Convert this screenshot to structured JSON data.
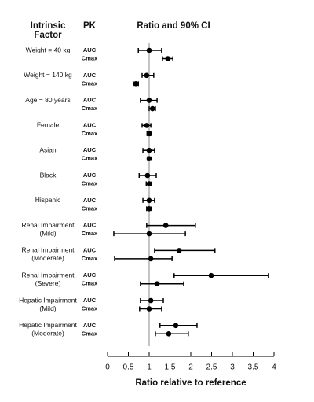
{
  "chart_data": {
    "type": "forest",
    "title": "Ratio and 90% CI",
    "factor_header": [
      "Intrinsic",
      "Factor"
    ],
    "pk_header": "PK",
    "x_label": "Ratio relative to reference",
    "categories": [
      [
        "Weight = 40 kg"
      ],
      [
        "Weight = 140 kg"
      ],
      [
        "Age = 80 years"
      ],
      [
        "Female"
      ],
      [
        "Asian"
      ],
      [
        "Black"
      ],
      [
        "Hispanic"
      ],
      [
        "Renal Impairment",
        "(Mild)"
      ],
      [
        "Renal Impairment",
        "(Moderate)"
      ],
      [
        "Renal Impairment",
        "(Severe)"
      ],
      [
        "Hepatic Impairment",
        "(Mild)"
      ],
      [
        "Hepatic Impairment",
        "(Moderate)"
      ]
    ],
    "series": [
      {
        "name": "AUC",
        "color": "#000000",
        "values": [
          1.0,
          0.94,
          1.0,
          0.94,
          1.0,
          0.96,
          1.0,
          1.4,
          1.72,
          2.49,
          1.04,
          1.64
        ],
        "lower": [
          0.74,
          0.83,
          0.79,
          0.83,
          0.85,
          0.76,
          0.85,
          0.94,
          1.13,
          1.6,
          0.79,
          1.26
        ],
        "upper": [
          1.3,
          1.11,
          1.19,
          1.04,
          1.13,
          1.17,
          1.13,
          2.11,
          2.58,
          3.87,
          1.34,
          2.15
        ]
      },
      {
        "name": "Cmax",
        "color": "#000000",
        "values": [
          1.45,
          0.68,
          1.08,
          1.0,
          1.0,
          1.0,
          1.0,
          1.0,
          1.04,
          1.19,
          1.0,
          1.47
        ],
        "lower": [
          1.32,
          0.62,
          1.0,
          0.95,
          0.96,
          0.93,
          0.94,
          0.15,
          0.17,
          0.79,
          0.77,
          1.15
        ],
        "upper": [
          1.57,
          0.74,
          1.15,
          1.04,
          1.06,
          1.06,
          1.06,
          1.87,
          1.55,
          1.83,
          1.3,
          1.94
        ]
      }
    ],
    "reference_line": 1,
    "xlim": [
      0,
      4
    ],
    "xticks": [
      0,
      0.5,
      1,
      1.5,
      2,
      2.5,
      3,
      3.5,
      4
    ]
  }
}
